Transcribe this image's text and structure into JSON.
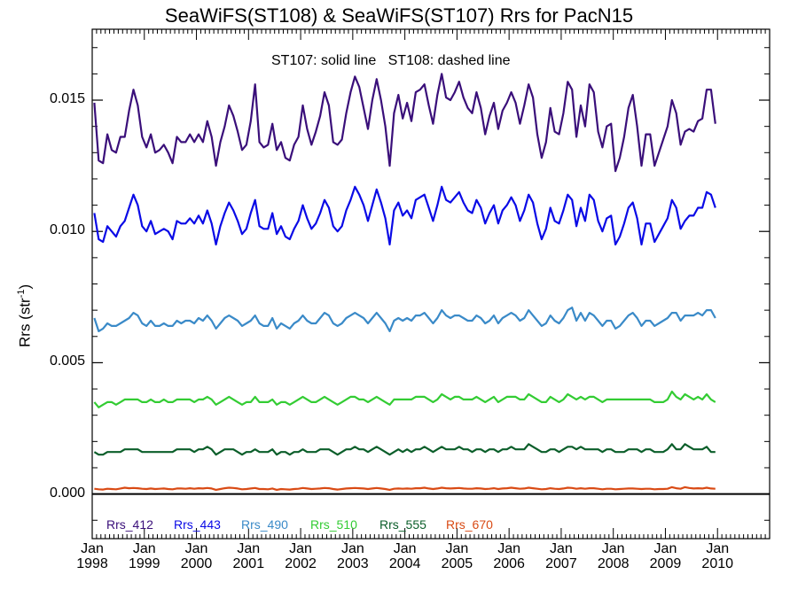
{
  "chart_data": {
    "type": "line",
    "title": "SeaWiFS(ST108) & SeaWiFS(ST107)  Rrs for PacN15",
    "annotation": "ST107: solid line   ST108: dashed line",
    "ylabel_main": "Rrs (str",
    "ylabel_sup": "-1",
    "ylabel_close": ")",
    "ylim": [
      -0.0017,
      0.0177
    ],
    "y_ticks": [
      {
        "value": 0.0,
        "label": "0.000"
      },
      {
        "value": 0.005,
        "label": "0.005"
      },
      {
        "value": 0.01,
        "label": "0.010"
      },
      {
        "value": 0.015,
        "label": "0.015"
      }
    ],
    "x_range": [
      "1998-01",
      "2010-12"
    ],
    "x_ticks": [
      {
        "month": "Jan",
        "year": "1998"
      },
      {
        "month": "Jan",
        "year": "1999"
      },
      {
        "month": "Jan",
        "year": "2000"
      },
      {
        "month": "Jan",
        "year": "2001"
      },
      {
        "month": "Jan",
        "year": "2002"
      },
      {
        "month": "Jan",
        "year": "2003"
      },
      {
        "month": "Jan",
        "year": "2004"
      },
      {
        "month": "Jan",
        "year": "2005"
      },
      {
        "month": "Jan",
        "year": "2006"
      },
      {
        "month": "Jan",
        "year": "2007"
      },
      {
        "month": "Jan",
        "year": "2008"
      },
      {
        "month": "Jan",
        "year": "2009"
      },
      {
        "month": "Jan",
        "year": "2010"
      }
    ],
    "zero_line": 0.0,
    "series": [
      {
        "name": "Rrs_412",
        "color": "#3a0f7a",
        "values": [
          0.0149,
          0.0127,
          0.0126,
          0.0137,
          0.0131,
          0.013,
          0.0136,
          0.0136,
          0.0146,
          0.0154,
          0.0148,
          0.0136,
          0.0132,
          0.0137,
          0.013,
          0.0131,
          0.0133,
          0.013,
          0.0126,
          0.0136,
          0.0134,
          0.0134,
          0.0137,
          0.0134,
          0.0137,
          0.0134,
          0.0142,
          0.0136,
          0.0125,
          0.0134,
          0.014,
          0.0148,
          0.0144,
          0.0138,
          0.0131,
          0.0133,
          0.0142,
          0.0156,
          0.0134,
          0.0132,
          0.0133,
          0.0141,
          0.0131,
          0.0134,
          0.0128,
          0.0127,
          0.0133,
          0.0136,
          0.0148,
          0.0139,
          0.0133,
          0.0138,
          0.0144,
          0.0153,
          0.0148,
          0.0134,
          0.0133,
          0.0135,
          0.0145,
          0.0153,
          0.0159,
          0.0155,
          0.0147,
          0.0139,
          0.015,
          0.0158,
          0.015,
          0.014,
          0.0125,
          0.0145,
          0.0152,
          0.0143,
          0.0149,
          0.0142,
          0.0153,
          0.0154,
          0.0156,
          0.0148,
          0.0141,
          0.0152,
          0.016,
          0.0151,
          0.015,
          0.0153,
          0.0157,
          0.0151,
          0.0147,
          0.0145,
          0.0153,
          0.0147,
          0.0137,
          0.0144,
          0.0149,
          0.0139,
          0.0146,
          0.0149,
          0.0153,
          0.0149,
          0.0141,
          0.0148,
          0.0156,
          0.0151,
          0.0137,
          0.0128,
          0.0134,
          0.0147,
          0.0138,
          0.0137,
          0.0145,
          0.0157,
          0.0154,
          0.0136,
          0.0148,
          0.014,
          0.0156,
          0.0153,
          0.0138,
          0.0132,
          0.014,
          0.0141,
          0.0123,
          0.0128,
          0.0136,
          0.0147,
          0.0152,
          0.014,
          0.0125,
          0.0137,
          0.0137,
          0.0125,
          0.013,
          0.0135,
          0.014,
          0.015,
          0.0145,
          0.0133,
          0.0138,
          0.0139,
          0.0138,
          0.0142,
          0.0143,
          0.0154,
          0.0154,
          0.0141
        ]
      },
      {
        "name": "Rrs_443",
        "color": "#0a0ae6",
        "values": [
          0.0107,
          0.0097,
          0.0096,
          0.0102,
          0.01,
          0.0098,
          0.0102,
          0.0104,
          0.0109,
          0.0114,
          0.011,
          0.0102,
          0.01,
          0.0104,
          0.0099,
          0.01,
          0.0101,
          0.01,
          0.0097,
          0.0104,
          0.0103,
          0.0103,
          0.0105,
          0.0103,
          0.0106,
          0.0103,
          0.0108,
          0.0103,
          0.0095,
          0.0102,
          0.0107,
          0.0111,
          0.0108,
          0.0104,
          0.0099,
          0.0101,
          0.0107,
          0.0112,
          0.0102,
          0.0101,
          0.0101,
          0.0107,
          0.0099,
          0.0102,
          0.0098,
          0.0097,
          0.0101,
          0.0104,
          0.011,
          0.0105,
          0.0101,
          0.0103,
          0.0107,
          0.0112,
          0.0109,
          0.0102,
          0.01,
          0.0102,
          0.0108,
          0.0112,
          0.0117,
          0.0114,
          0.011,
          0.0104,
          0.011,
          0.0116,
          0.0111,
          0.0105,
          0.0095,
          0.0108,
          0.0111,
          0.0106,
          0.0108,
          0.0105,
          0.0112,
          0.0113,
          0.0114,
          0.0109,
          0.0104,
          0.011,
          0.0117,
          0.0112,
          0.0111,
          0.0113,
          0.0115,
          0.0111,
          0.0108,
          0.0107,
          0.0112,
          0.0109,
          0.0103,
          0.0107,
          0.011,
          0.0103,
          0.0108,
          0.011,
          0.0113,
          0.011,
          0.0104,
          0.0108,
          0.0114,
          0.0111,
          0.0103,
          0.0097,
          0.0101,
          0.0109,
          0.0104,
          0.0103,
          0.0108,
          0.0114,
          0.0112,
          0.0102,
          0.0109,
          0.0104,
          0.0114,
          0.0112,
          0.0104,
          0.01,
          0.0105,
          0.0106,
          0.0095,
          0.0098,
          0.0103,
          0.0109,
          0.0111,
          0.0105,
          0.0095,
          0.0103,
          0.0103,
          0.0096,
          0.0099,
          0.0102,
          0.0105,
          0.0112,
          0.0109,
          0.0101,
          0.0104,
          0.0106,
          0.0106,
          0.0109,
          0.0109,
          0.0115,
          0.0114,
          0.0109
        ]
      },
      {
        "name": "Rrs_490",
        "color": "#3a8ac8",
        "values": [
          0.0067,
          0.0062,
          0.0063,
          0.0065,
          0.0064,
          0.0064,
          0.0065,
          0.0066,
          0.0067,
          0.0069,
          0.0068,
          0.0065,
          0.0064,
          0.0066,
          0.0064,
          0.0064,
          0.0065,
          0.0064,
          0.0064,
          0.0066,
          0.0065,
          0.0066,
          0.0066,
          0.0065,
          0.0067,
          0.0066,
          0.0068,
          0.0066,
          0.0063,
          0.0065,
          0.0067,
          0.0068,
          0.0067,
          0.0066,
          0.0064,
          0.0065,
          0.0066,
          0.0068,
          0.0065,
          0.0064,
          0.0064,
          0.0067,
          0.0063,
          0.0065,
          0.0064,
          0.0063,
          0.0065,
          0.0066,
          0.0068,
          0.0066,
          0.0065,
          0.0065,
          0.0067,
          0.0069,
          0.0068,
          0.0065,
          0.0064,
          0.0065,
          0.0067,
          0.0068,
          0.0069,
          0.0068,
          0.0067,
          0.0065,
          0.0067,
          0.0069,
          0.0067,
          0.0065,
          0.0062,
          0.0066,
          0.0067,
          0.0066,
          0.0067,
          0.0066,
          0.0068,
          0.0068,
          0.0069,
          0.0067,
          0.0065,
          0.0067,
          0.007,
          0.0068,
          0.0067,
          0.0068,
          0.0068,
          0.0067,
          0.0066,
          0.0066,
          0.0068,
          0.0067,
          0.0065,
          0.0066,
          0.0068,
          0.0065,
          0.0067,
          0.0068,
          0.0069,
          0.0068,
          0.0066,
          0.0067,
          0.007,
          0.0068,
          0.0066,
          0.0064,
          0.0065,
          0.0068,
          0.0066,
          0.0065,
          0.0067,
          0.007,
          0.0071,
          0.0066,
          0.0069,
          0.0066,
          0.0069,
          0.0068,
          0.0066,
          0.0064,
          0.0066,
          0.0066,
          0.0063,
          0.0064,
          0.0066,
          0.0068,
          0.0069,
          0.0067,
          0.0064,
          0.0066,
          0.0066,
          0.0064,
          0.0065,
          0.0066,
          0.0067,
          0.0069,
          0.0069,
          0.0066,
          0.0068,
          0.0068,
          0.0068,
          0.0069,
          0.0068,
          0.007,
          0.007,
          0.0067
        ]
      },
      {
        "name": "Rrs_510",
        "color": "#33cc33",
        "values": [
          0.0035,
          0.0033,
          0.0034,
          0.0035,
          0.0035,
          0.0034,
          0.0035,
          0.0036,
          0.0036,
          0.0036,
          0.0036,
          0.0035,
          0.0035,
          0.0036,
          0.0035,
          0.0035,
          0.0036,
          0.0035,
          0.0035,
          0.0036,
          0.0036,
          0.0036,
          0.0036,
          0.0035,
          0.0036,
          0.0036,
          0.0037,
          0.0036,
          0.0034,
          0.0035,
          0.0036,
          0.0037,
          0.0036,
          0.0035,
          0.0034,
          0.0035,
          0.0035,
          0.0037,
          0.0035,
          0.0035,
          0.0035,
          0.0036,
          0.0034,
          0.0035,
          0.0035,
          0.0034,
          0.0035,
          0.0036,
          0.0037,
          0.0036,
          0.0035,
          0.0035,
          0.0036,
          0.0037,
          0.0036,
          0.0035,
          0.0034,
          0.0035,
          0.0036,
          0.0037,
          0.0037,
          0.0036,
          0.0036,
          0.0035,
          0.0036,
          0.0037,
          0.0036,
          0.0035,
          0.0034,
          0.0036,
          0.0036,
          0.0036,
          0.0036,
          0.0036,
          0.0037,
          0.0037,
          0.0037,
          0.0036,
          0.0035,
          0.0036,
          0.0038,
          0.0037,
          0.0036,
          0.0037,
          0.0037,
          0.0036,
          0.0036,
          0.0036,
          0.0037,
          0.0036,
          0.0035,
          0.0036,
          0.0037,
          0.0035,
          0.0036,
          0.0037,
          0.0037,
          0.0037,
          0.0036,
          0.0036,
          0.0038,
          0.0037,
          0.0036,
          0.0035,
          0.0035,
          0.0037,
          0.0036,
          0.0035,
          0.0036,
          0.0038,
          0.0037,
          0.0036,
          0.0037,
          0.0036,
          0.0037,
          0.0037,
          0.0036,
          0.0035,
          0.0036,
          0.0036,
          0.0036,
          0.0036,
          0.0036,
          0.0036,
          0.0036,
          0.0036,
          0.0036,
          0.0036,
          0.0036,
          0.0035,
          0.0035,
          0.0035,
          0.0036,
          0.0039,
          0.0037,
          0.0036,
          0.0038,
          0.0037,
          0.0036,
          0.0037,
          0.0036,
          0.0038,
          0.0036,
          0.0035
        ]
      },
      {
        "name": "Rrs_555",
        "color": "#0b5e2a",
        "values": [
          0.0016,
          0.0015,
          0.0015,
          0.0016,
          0.0016,
          0.0016,
          0.0016,
          0.0017,
          0.0017,
          0.0017,
          0.0017,
          0.0016,
          0.0016,
          0.0016,
          0.0016,
          0.0016,
          0.0016,
          0.0016,
          0.0016,
          0.0017,
          0.0017,
          0.0017,
          0.0017,
          0.0016,
          0.0017,
          0.0017,
          0.0018,
          0.0017,
          0.0015,
          0.0016,
          0.0017,
          0.0017,
          0.0017,
          0.0016,
          0.0015,
          0.0016,
          0.0016,
          0.0017,
          0.0016,
          0.0016,
          0.0016,
          0.0017,
          0.0015,
          0.0016,
          0.0016,
          0.0015,
          0.0016,
          0.0016,
          0.0017,
          0.0016,
          0.0016,
          0.0016,
          0.0017,
          0.0017,
          0.0017,
          0.0016,
          0.0015,
          0.0016,
          0.0017,
          0.0017,
          0.0018,
          0.0017,
          0.0017,
          0.0016,
          0.0017,
          0.0018,
          0.0017,
          0.0016,
          0.0015,
          0.0016,
          0.0017,
          0.0016,
          0.0017,
          0.0016,
          0.0017,
          0.0017,
          0.0018,
          0.0017,
          0.0016,
          0.0017,
          0.0018,
          0.0017,
          0.0017,
          0.0017,
          0.0018,
          0.0017,
          0.0017,
          0.0016,
          0.0017,
          0.0017,
          0.0016,
          0.0017,
          0.0017,
          0.0016,
          0.0017,
          0.0017,
          0.0018,
          0.0017,
          0.0017,
          0.0017,
          0.0019,
          0.0018,
          0.0017,
          0.0016,
          0.0016,
          0.0017,
          0.0017,
          0.0016,
          0.0017,
          0.0018,
          0.0018,
          0.0017,
          0.0018,
          0.0017,
          0.0017,
          0.0017,
          0.0017,
          0.0016,
          0.0017,
          0.0017,
          0.0016,
          0.0016,
          0.0016,
          0.0017,
          0.0017,
          0.0017,
          0.0016,
          0.0017,
          0.0017,
          0.0016,
          0.0016,
          0.0016,
          0.0017,
          0.0019,
          0.0017,
          0.0017,
          0.0019,
          0.0018,
          0.0017,
          0.0017,
          0.0017,
          0.0018,
          0.0016,
          0.0016
        ]
      },
      {
        "name": "Rrs_670",
        "color": "#d94a14",
        "values": [
          0.0002,
          0.00018,
          0.00017,
          0.0002,
          0.00019,
          0.00018,
          0.00021,
          0.00024,
          0.00022,
          0.00023,
          0.00022,
          0.0002,
          0.00019,
          0.00021,
          0.00019,
          0.0002,
          0.00021,
          0.00019,
          0.00018,
          0.00021,
          0.00021,
          0.0002,
          0.00022,
          0.0002,
          0.00022,
          0.00021,
          0.00023,
          0.00021,
          0.00016,
          0.00019,
          0.00022,
          0.00024,
          0.00023,
          0.00021,
          0.00018,
          0.00019,
          0.00021,
          0.00023,
          0.00019,
          0.00019,
          0.00018,
          0.00021,
          0.00016,
          0.00019,
          0.00018,
          0.00017,
          0.00019,
          0.0002,
          0.00023,
          0.00021,
          0.00019,
          0.0002,
          0.00021,
          0.00023,
          0.00022,
          0.00019,
          0.00017,
          0.00019,
          0.00021,
          0.00022,
          0.00023,
          0.00022,
          0.00021,
          0.00019,
          0.00021,
          0.00023,
          0.00021,
          0.00019,
          0.00016,
          0.0002,
          0.00021,
          0.0002,
          0.00021,
          0.0002,
          0.00022,
          0.00022,
          0.00024,
          0.00021,
          0.00019,
          0.00021,
          0.00024,
          0.00022,
          0.00021,
          0.00022,
          0.00023,
          0.00021,
          0.0002,
          0.0002,
          0.00022,
          0.00021,
          0.00019,
          0.0002,
          0.00022,
          0.00019,
          0.00021,
          0.00022,
          0.00024,
          0.00022,
          0.0002,
          0.00021,
          0.00024,
          0.00022,
          0.0002,
          0.00018,
          0.00019,
          0.00022,
          0.0002,
          0.00019,
          0.00021,
          0.00024,
          0.00023,
          0.0002,
          0.00022,
          0.0002,
          0.00022,
          0.00022,
          0.0002,
          0.00018,
          0.0002,
          0.0002,
          0.00018,
          0.00019,
          0.0002,
          0.00021,
          0.00021,
          0.0002,
          0.00019,
          0.0002,
          0.0002,
          0.00018,
          0.00019,
          0.00019,
          0.0002,
          0.00026,
          0.00022,
          0.0002,
          0.00026,
          0.00023,
          0.00021,
          0.00022,
          0.00021,
          0.00024,
          0.00021,
          0.0002
        ]
      }
    ]
  }
}
